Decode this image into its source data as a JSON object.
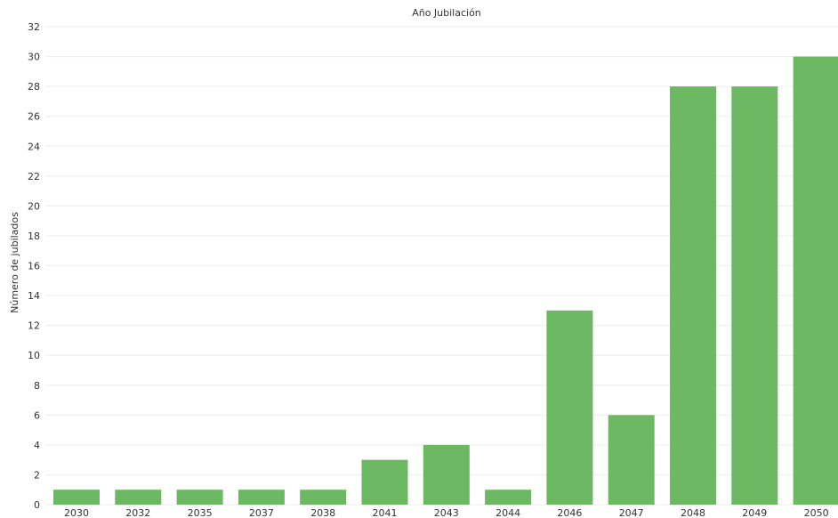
{
  "chart_data": {
    "type": "bar",
    "title": "Año Jubilación",
    "xlabel": "",
    "ylabel": "Número de jubilados",
    "categories": [
      "2030",
      "2032",
      "2035",
      "2037",
      "2038",
      "2041",
      "2043",
      "2044",
      "2046",
      "2047",
      "2048",
      "2049",
      "2050"
    ],
    "values": [
      1,
      1,
      1,
      1,
      1,
      3,
      4,
      1,
      13,
      6,
      28,
      28,
      30
    ],
    "ylim": [
      0,
      32
    ],
    "yticks": [
      0,
      2,
      4,
      6,
      8,
      10,
      12,
      14,
      16,
      18,
      20,
      22,
      24,
      26,
      28,
      30,
      32
    ],
    "grid": true,
    "legend": "none",
    "bar_color": "#6db862",
    "grid_color": "#eeeeee"
  }
}
